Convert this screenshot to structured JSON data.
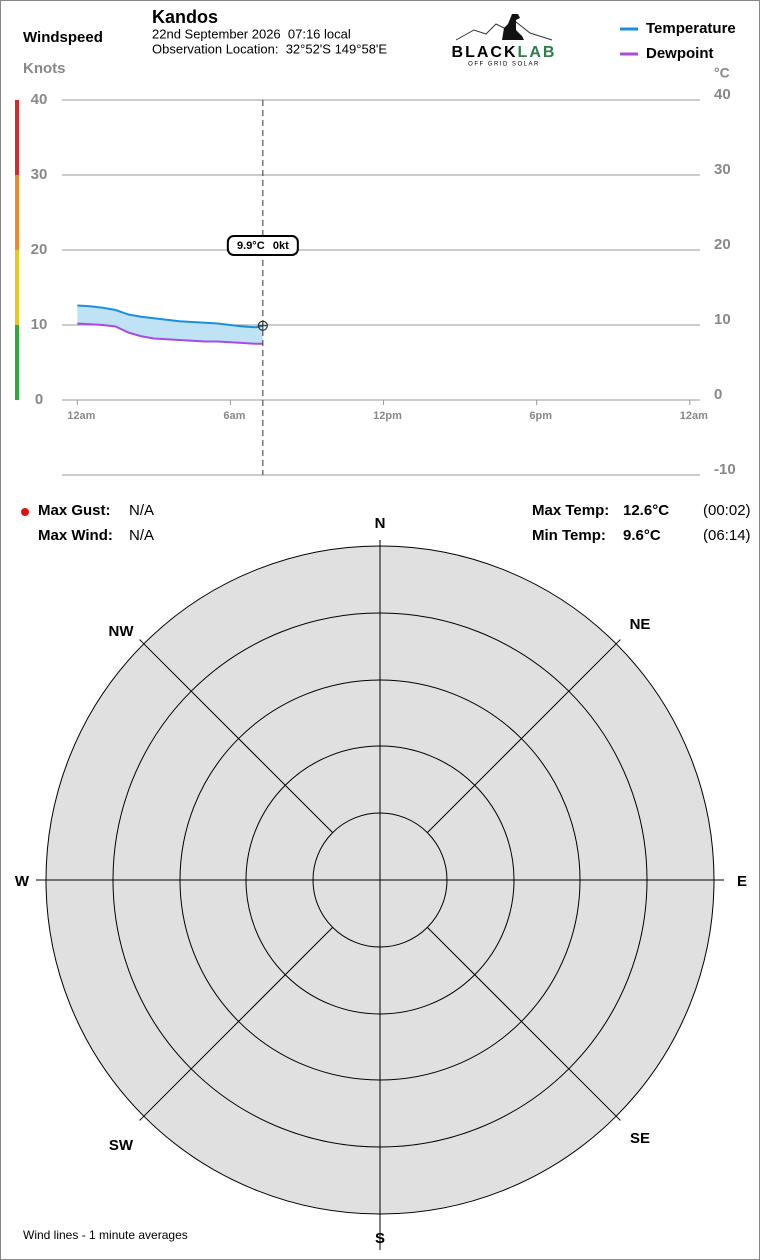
{
  "header": {
    "location_name": "Kandos",
    "date_line": "22nd September 2026  07:16 local",
    "observation_line": "Observation Location:  32°52'S 149°58'E",
    "logo_black": "BLACK",
    "logo_green": "LAB",
    "logo_tagline": "OFF GRID SOLAR"
  },
  "chart_data": {
    "type": "line",
    "y_label": "Windspeed",
    "y_units": "Knots",
    "y2_units": "°C",
    "x": [
      0,
      0.5,
      1,
      1.5,
      2,
      2.5,
      3,
      3.5,
      4,
      4.5,
      5,
      5.5,
      6,
      6.5,
      7,
      7.27
    ],
    "series": [
      {
        "name": "Temperature",
        "color": "#1a8fe0",
        "axis": "y2",
        "values": [
          12.6,
          12.5,
          12.3,
          12.0,
          11.4,
          11.1,
          10.9,
          10.7,
          10.5,
          10.4,
          10.3,
          10.2,
          10.0,
          9.8,
          9.7,
          9.9
        ]
      },
      {
        "name": "Dewpoint",
        "color": "#a64ce0",
        "axis": "y2",
        "values": [
          10.2,
          10.1,
          10.0,
          9.8,
          9.0,
          8.5,
          8.2,
          8.1,
          8.0,
          7.9,
          7.8,
          7.8,
          7.7,
          7.6,
          7.5,
          7.5
        ]
      }
    ],
    "area_color": "#bfe3f5",
    "xlim": [
      -0.6,
      24.4
    ],
    "xticks": [
      {
        "value": 0,
        "label": "12am"
      },
      {
        "value": 6,
        "label": "6am"
      },
      {
        "value": 12,
        "label": "12pm"
      },
      {
        "value": 18,
        "label": "6pm"
      },
      {
        "value": 24,
        "label": "12am"
      }
    ],
    "ylim": [
      -10,
      40
    ],
    "yticks": [
      0,
      10,
      20,
      30,
      40
    ],
    "y2lim": [
      -10,
      40
    ],
    "y2ticks": [
      -10,
      0,
      10,
      20,
      30,
      40
    ],
    "grid": true,
    "cursor": {
      "x": 7.27,
      "value": 9.9,
      "value_label": "9.9°C",
      "wind_label": "0kt"
    }
  },
  "stats": {
    "max_gust": {
      "label": "Max Gust:",
      "value": "N/A"
    },
    "max_wind": {
      "label": "Max Wind:",
      "value": "N/A"
    },
    "max_temp": {
      "label": "Max Temp:",
      "value": "12.6°C",
      "time": "(00:02)"
    },
    "min_temp": {
      "label": "Min Temp:",
      "value": "9.6°C",
      "time": "(06:14)"
    }
  },
  "compass": {
    "directions": [
      "N",
      "NE",
      "E",
      "SE",
      "S",
      "SW",
      "W",
      "NW"
    ]
  },
  "footnote": "Wind lines - 1 minute averages"
}
